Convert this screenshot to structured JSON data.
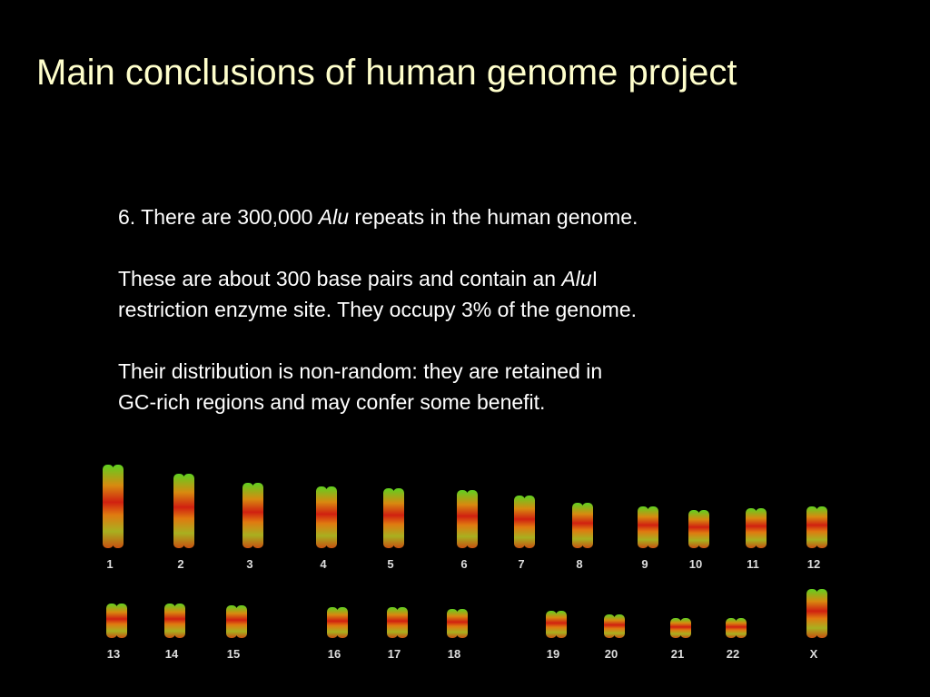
{
  "header": {
    "title": "Main conclusions of human genome project"
  },
  "body": {
    "paragraphs": [
      [
        [
          "6. There are 300,000 ",
          "Alu",
          " repeats in the human genome."
        ]
      ],
      [
        [
          "These are about 300 base pairs and contain an ",
          "Alu",
          "I"
        ],
        [
          "restriction enzyme site. They occupy 3% of the genome."
        ]
      ],
      [
        [
          "Their distribution is non-random: they are retained in"
        ],
        [
          "GC-rich regions and may confer some benefit."
        ]
      ]
    ]
  },
  "karyotype": {
    "rows": [
      [
        "1",
        "2",
        "3",
        "4",
        "5",
        "6",
        "7",
        "8",
        "9",
        "10",
        "11",
        "12"
      ],
      [
        "13",
        "14",
        "15",
        "16",
        "17",
        "18",
        "19",
        "20",
        "21",
        "22",
        "X"
      ]
    ]
  }
}
